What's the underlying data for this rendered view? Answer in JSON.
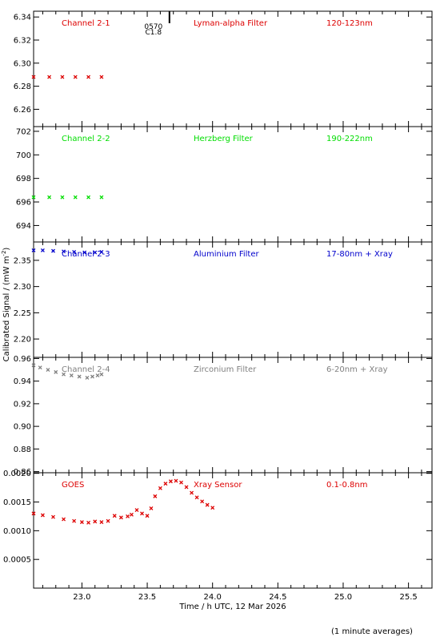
{
  "figure": {
    "ylabel": "Calibrated Signal / (mW m",
    "ylabel_sup": "-2",
    "ylabel_close": ")",
    "xlabel": "Time / h UTC, 12 Mar 2026",
    "footnote": "(1 minute averages)",
    "flare_marker": {
      "time": 23.67,
      "labels": [
        "C1.8",
        "0570"
      ]
    },
    "axis_color": "#000000"
  },
  "chart_data": [
    {
      "type": "scatter",
      "title": "Channel 2-1",
      "subtitle": "Lyman-alpha Filter",
      "band": "120-123nm",
      "color": "#dd0000",
      "xlim": [
        22.63,
        25.68
      ],
      "ylim": [
        6.245,
        6.345
      ],
      "yticks": [
        "6.26",
        "6.28",
        "6.30",
        "6.32",
        "6.34"
      ],
      "ytick_values": [
        6.26,
        6.28,
        6.3,
        6.32,
        6.34
      ],
      "x": [
        22.63,
        22.75,
        22.85,
        22.95,
        23.05,
        23.15
      ],
      "y": [
        6.288,
        6.288,
        6.288,
        6.288,
        6.288,
        6.288
      ]
    },
    {
      "type": "scatter",
      "title": "Channel 2-2",
      "subtitle": "Herzberg Filter",
      "band": "190-222nm",
      "color": "#00dd00",
      "xlim": [
        22.63,
        25.68
      ],
      "ylim": [
        692.6,
        702.4
      ],
      "yticks": [
        "694",
        "696",
        "698",
        "700",
        "702"
      ],
      "ytick_values": [
        694,
        696,
        698,
        700,
        702
      ],
      "x": [
        22.63,
        22.75,
        22.85,
        22.95,
        23.05,
        23.15
      ],
      "y": [
        696.4,
        696.4,
        696.4,
        696.4,
        696.4,
        696.4
      ]
    },
    {
      "type": "scatter",
      "title": "Channel 2-3",
      "subtitle": "Aluminium Filter",
      "band": "17-80nm + Xray",
      "color": "#0000cc",
      "xlim": [
        22.63,
        25.68
      ],
      "ylim": [
        2.165,
        2.385
      ],
      "yticks": [
        "2.20",
        "2.25",
        "2.30",
        "2.35"
      ],
      "ytick_values": [
        2.2,
        2.25,
        2.3,
        2.35
      ],
      "x": [
        22.63,
        22.7,
        22.78,
        22.86,
        22.94,
        23.02,
        23.1,
        23.15
      ],
      "y": [
        2.369,
        2.369,
        2.368,
        2.367,
        2.366,
        2.365,
        2.365,
        2.366
      ]
    },
    {
      "type": "scatter",
      "title": "Channel 2-4",
      "subtitle": "Zirconium Filter",
      "band": "6-20nm + Xray",
      "color": "#808080",
      "xlim": [
        22.63,
        25.68
      ],
      "ylim": [
        0.859,
        0.961
      ],
      "yticks": [
        "0.86",
        "0.88",
        "0.90",
        "0.92",
        "0.94",
        "0.96"
      ],
      "ytick_values": [
        0.86,
        0.88,
        0.9,
        0.92,
        0.94,
        0.96
      ],
      "x": [
        22.63,
        22.68,
        22.74,
        22.8,
        22.86,
        22.92,
        22.98,
        23.04,
        23.08,
        23.12,
        23.15
      ],
      "y": [
        0.954,
        0.952,
        0.95,
        0.948,
        0.946,
        0.945,
        0.944,
        0.943,
        0.944,
        0.945,
        0.946
      ]
    },
    {
      "type": "scatter",
      "title": "GOES",
      "subtitle": "Xray Sensor",
      "band": "0.1-0.8nm",
      "color": "#dd0000",
      "xlim": [
        22.63,
        25.68
      ],
      "ylim": [
        0.0,
        0.00201
      ],
      "yticks": [
        "0.0005",
        "0.0010",
        "0.0015",
        "0.0020"
      ],
      "ytick_values": [
        0.0005,
        0.001,
        0.0015,
        0.002
      ],
      "xticks": [
        "23.0",
        "23.5",
        "24.0",
        "24.5",
        "25.0",
        "25.5"
      ],
      "xtick_values": [
        23.0,
        23.5,
        24.0,
        24.5,
        25.0,
        25.5
      ],
      "x": [
        22.63,
        22.7,
        22.78,
        22.86,
        22.94,
        23.0,
        23.05,
        23.1,
        23.15,
        23.2,
        23.25,
        23.3,
        23.35,
        23.38,
        23.42,
        23.46,
        23.5,
        23.53,
        23.56,
        23.6,
        23.64,
        23.68,
        23.72,
        23.76,
        23.8,
        23.84,
        23.88,
        23.92,
        23.96,
        24.0
      ],
      "y": [
        0.0013,
        0.00127,
        0.00124,
        0.0012,
        0.00117,
        0.00115,
        0.00114,
        0.00116,
        0.00115,
        0.00117,
        0.00126,
        0.00123,
        0.00125,
        0.00128,
        0.00136,
        0.0013,
        0.00126,
        0.00139,
        0.0016,
        0.00174,
        0.00182,
        0.00186,
        0.00187,
        0.00184,
        0.00176,
        0.00166,
        0.00158,
        0.00151,
        0.00145,
        0.0014
      ]
    }
  ]
}
